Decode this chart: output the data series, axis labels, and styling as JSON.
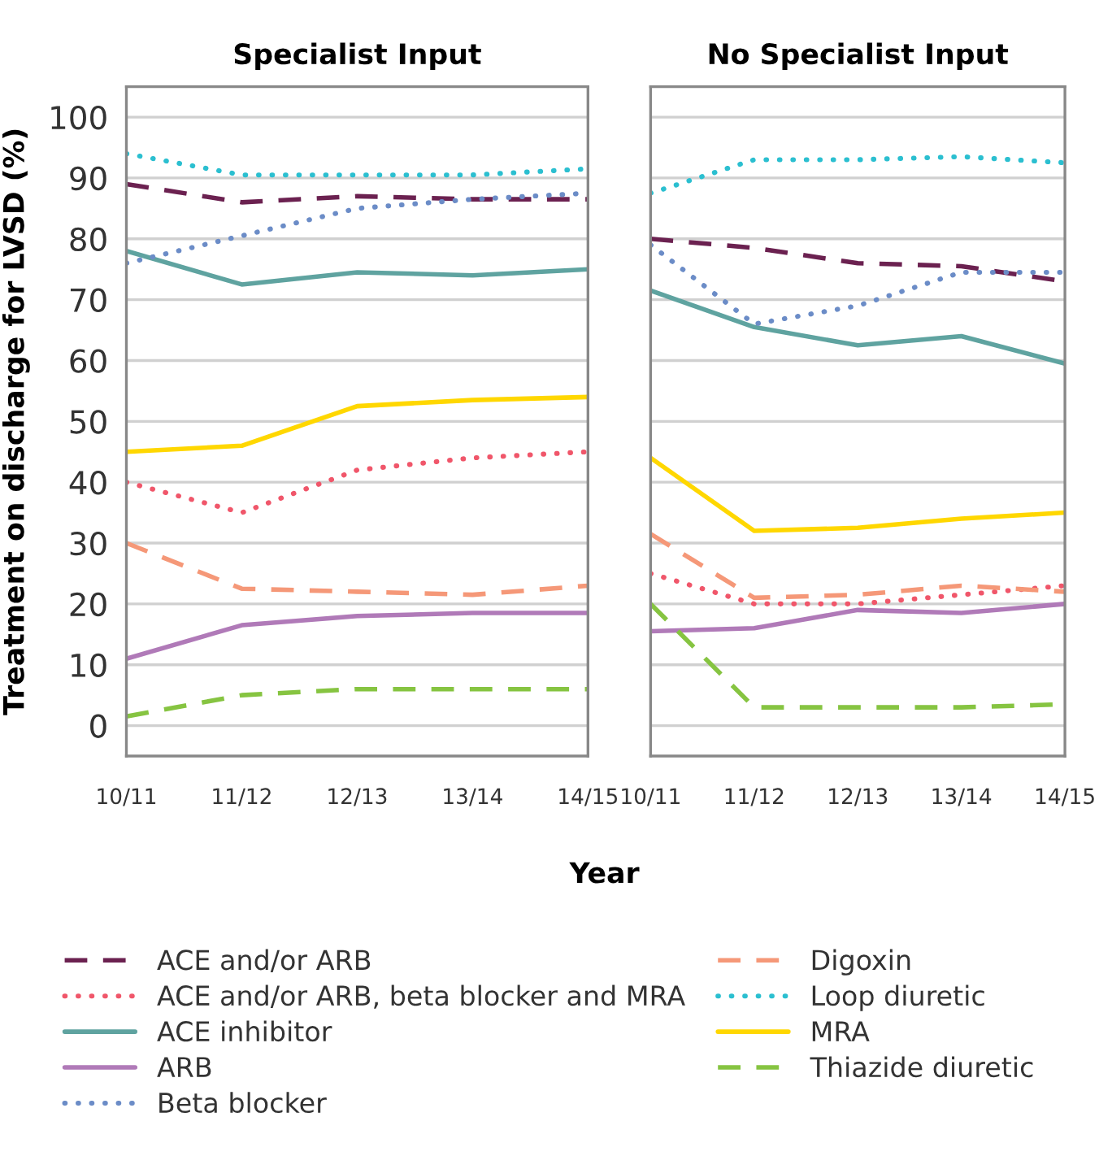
{
  "chart_data": [
    {
      "type": "line",
      "title": "Specialist Input",
      "xlabel": "Year",
      "ylabel": "Treatment on discharge for LVSD (%)",
      "categories": [
        "10/11",
        "11/12",
        "12/13",
        "13/14",
        "14/15"
      ],
      "ylim": [
        -5,
        105
      ],
      "yticks": [
        0,
        10,
        20,
        30,
        40,
        50,
        60,
        70,
        80,
        90,
        100
      ],
      "grid": "y",
      "legend": "bottom",
      "series": [
        {
          "name": "ACE and/or ARB",
          "color": "#6b2150",
          "line_style": "dashed",
          "values": [
            89,
            86,
            87,
            86.5,
            86.5
          ]
        },
        {
          "name": "ACE and/or ARB, beta blocker and MRA",
          "color": "#f0566a",
          "line_style": "dotted",
          "values": [
            40,
            35,
            42,
            44,
            45
          ]
        },
        {
          "name": "ACE inhibitor",
          "color": "#5fa3a0",
          "line_style": "solid",
          "values": [
            78,
            72.5,
            74.5,
            74,
            75
          ]
        },
        {
          "name": "ARB",
          "color": "#b07ab8",
          "line_style": "solid",
          "values": [
            11,
            16.5,
            18,
            18.5,
            18.5
          ]
        },
        {
          "name": "Beta blocker",
          "color": "#6b8cc7",
          "line_style": "dotted",
          "values": [
            76,
            80.5,
            85,
            86.5,
            87.5
          ]
        },
        {
          "name": "Digoxin",
          "color": "#f59878",
          "line_style": "dashed",
          "values": [
            30,
            22.5,
            22,
            21.5,
            23
          ]
        },
        {
          "name": "Loop diuretic",
          "color": "#2bbfd0",
          "line_style": "dotted",
          "values": [
            94,
            90.5,
            90.5,
            90.5,
            91.5
          ]
        },
        {
          "name": "MRA",
          "color": "#ffd700",
          "line_style": "solid",
          "values": [
            45,
            46,
            52.5,
            53.5,
            54
          ]
        },
        {
          "name": "Thiazide diuretic",
          "color": "#86c441",
          "line_style": "dashed",
          "values": [
            1.5,
            5,
            6,
            6,
            6
          ]
        }
      ]
    },
    {
      "type": "line",
      "title": "No Specialist Input",
      "categories": [
        "10/11",
        "11/12",
        "12/13",
        "13/14",
        "14/15"
      ],
      "ylim": [
        -5,
        105
      ],
      "yticks": [
        0,
        10,
        20,
        30,
        40,
        50,
        60,
        70,
        80,
        90,
        100
      ],
      "grid": "y",
      "tick_labels": "x",
      "series": [
        {
          "name": "ACE and/or ARB",
          "color": "#6b2150",
          "line_style": "dashed",
          "values": [
            80,
            78.5,
            76,
            75.5,
            73
          ]
        },
        {
          "name": "ACE and/or ARB, beta blocker and MRA",
          "color": "#f0566a",
          "line_style": "dotted",
          "values": [
            25,
            20,
            20,
            21.5,
            23
          ]
        },
        {
          "name": "ACE inhibitor",
          "color": "#5fa3a0",
          "line_style": "solid",
          "values": [
            71.5,
            65.5,
            62.5,
            64,
            59.5
          ]
        },
        {
          "name": "ARB",
          "color": "#b07ab8",
          "line_style": "solid",
          "values": [
            15.5,
            16,
            19,
            18.5,
            20
          ]
        },
        {
          "name": "Beta blocker",
          "color": "#6b8cc7",
          "line_style": "dotted",
          "values": [
            79,
            66,
            69,
            74.5,
            74.5
          ]
        },
        {
          "name": "Digoxin",
          "color": "#f59878",
          "line_style": "dashed",
          "values": [
            31.5,
            21,
            21.5,
            23,
            22
          ]
        },
        {
          "name": "Loop diuretic",
          "color": "#2bbfd0",
          "line_style": "dotted",
          "values": [
            87.5,
            93,
            93,
            93.5,
            92.5
          ]
        },
        {
          "name": "MRA",
          "color": "#ffd700",
          "line_style": "solid",
          "values": [
            44,
            32,
            32.5,
            34,
            35
          ]
        },
        {
          "name": "Thiazide diuretic",
          "color": "#86c441",
          "line_style": "dashed",
          "values": [
            20,
            3,
            3,
            3,
            3.5
          ]
        }
      ]
    }
  ]
}
